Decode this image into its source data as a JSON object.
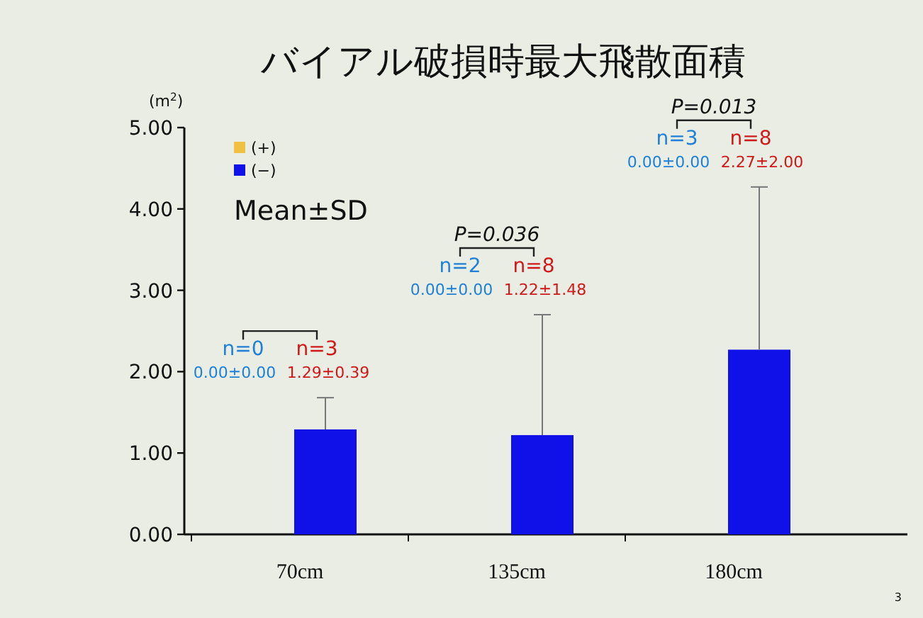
{
  "chart_data": {
    "type": "bar",
    "title": "バイアル破損時最大飛散面積",
    "ylabel": "(m$^{2}$)",
    "categories": [
      "70cm",
      "135cm",
      "180cm"
    ],
    "series": [
      {
        "name": "(+)",
        "color": "#f0c040",
        "values": [
          0,
          0,
          0
        ]
      },
      {
        "name": "(−)",
        "color": "#1010e8",
        "values": [
          1.29,
          1.22,
          2.27
        ],
        "errors": [
          [
            1.29,
            1.68
          ],
          [
            1.22,
            2.7
          ],
          [
            2.27,
            4.27
          ]
        ]
      }
    ],
    "ylim": [
      0,
      5
    ],
    "yticks": [
      {
        "value": 0,
        "label": "0.00"
      },
      {
        "value": 1,
        "label": "1.00"
      },
      {
        "value": 2,
        "label": "2.00"
      },
      {
        "value": 3,
        "label": "3.00"
      },
      {
        "value": 4,
        "label": "4.00"
      },
      {
        "value": 5,
        "label": "5.00"
      }
    ],
    "legend": "top left",
    "annotations": [
      "Mean±SD",
      "n=0",
      "n=3",
      "0.00±0.00",
      "1.29±0.39",
      "n=2",
      "n=8",
      "0.00±0.00",
      "1.22±1.48",
      "n=3",
      "n=8",
      "0.00±0.00",
      "2.27±2.00",
      "P=0.036",
      "P=0.013",
      "3"
    ]
  }
}
